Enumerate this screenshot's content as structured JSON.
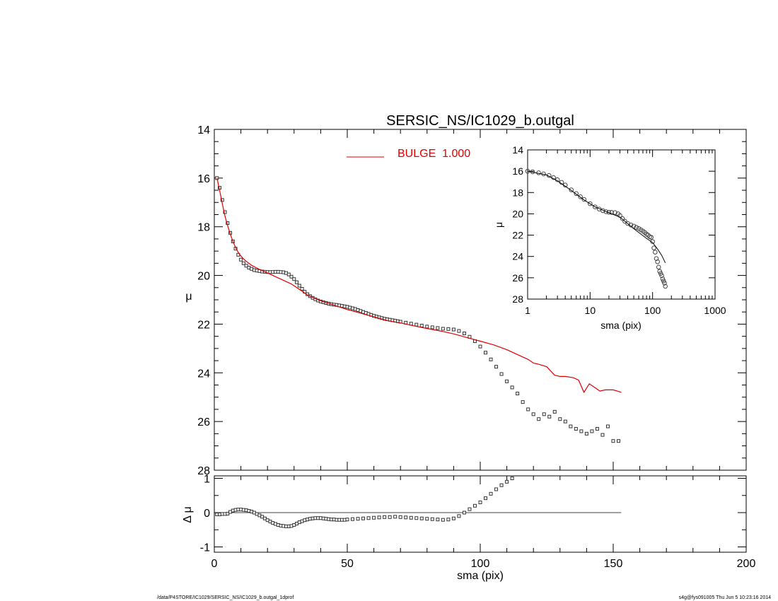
{
  "chart_data": [
    {
      "name": "main-profile",
      "type": "scatter",
      "title": "SERSIC_NS/IC1029_b.outgal",
      "xlabel": "",
      "ylabel": "μ",
      "xlim": [
        0,
        200
      ],
      "ylim": [
        28,
        14
      ],
      "y_inverted": true,
      "x_ticks": [],
      "y_ticks": [
        "14",
        "16",
        "18",
        "20",
        "22",
        "24",
        "26",
        "28"
      ],
      "grid": false,
      "legend": {
        "position": "top-center",
        "label": "BULGE  1.000",
        "color": "#e00000"
      },
      "observed_points": {
        "marker": "square",
        "x": [
          1,
          2,
          3,
          4,
          5,
          6,
          7,
          8,
          9,
          10,
          11,
          12,
          13,
          14,
          15,
          16,
          17,
          18,
          19,
          20,
          21,
          22,
          23,
          24,
          25,
          26,
          27,
          28,
          29,
          30,
          31,
          32,
          33,
          34,
          35,
          36,
          37,
          38,
          39,
          40,
          41,
          42,
          43,
          44,
          45,
          46,
          47,
          48,
          49,
          50,
          51,
          52,
          53,
          54,
          55,
          56,
          57,
          58,
          59,
          60,
          61,
          62,
          63,
          64,
          65,
          66,
          67,
          68,
          69,
          70,
          72,
          74,
          76,
          78,
          80,
          82,
          84,
          86,
          88,
          90,
          92,
          94,
          96,
          98,
          100,
          102,
          104,
          106,
          108,
          110,
          112,
          114,
          116,
          118,
          120,
          122,
          124,
          126,
          128,
          130,
          132,
          134,
          136,
          138,
          140,
          142,
          144,
          146,
          148,
          150,
          152
        ],
        "y": [
          16.0,
          16.4,
          16.9,
          17.4,
          17.85,
          18.25,
          18.6,
          18.9,
          19.15,
          19.35,
          19.5,
          19.6,
          19.68,
          19.73,
          19.78,
          19.8,
          19.82,
          19.84,
          19.85,
          19.86,
          19.86,
          19.86,
          19.85,
          19.85,
          19.86,
          19.87,
          19.9,
          19.96,
          20.05,
          20.15,
          20.28,
          20.42,
          20.55,
          20.67,
          20.77,
          20.85,
          20.92,
          20.98,
          21.03,
          21.07,
          21.1,
          21.13,
          21.16,
          21.18,
          21.2,
          21.21,
          21.23,
          21.25,
          21.27,
          21.29,
          21.32,
          21.35,
          21.38,
          21.42,
          21.46,
          21.5,
          21.54,
          21.58,
          21.62,
          21.66,
          21.69,
          21.72,
          21.75,
          21.78,
          21.8,
          21.82,
          21.84,
          21.86,
          21.88,
          21.9,
          21.94,
          21.98,
          22.02,
          22.06,
          22.1,
          22.13,
          22.16,
          22.19,
          22.2,
          22.22,
          22.28,
          22.38,
          22.52,
          22.7,
          22.92,
          23.17,
          23.45,
          23.75,
          24.05,
          24.35,
          24.6,
          24.85,
          25.2,
          25.5,
          25.7,
          25.9,
          25.7,
          25.8,
          25.6,
          25.9,
          26.0,
          26.2,
          26.3,
          26.4,
          26.5,
          26.4,
          26.3,
          26.55,
          26.2,
          26.8,
          26.8
        ]
      },
      "model_line": {
        "name": "BULGE  1.000",
        "color": "#e00000",
        "x": [
          1,
          2,
          3,
          4,
          5,
          6,
          7,
          8,
          9,
          10,
          11,
          12,
          13,
          14,
          15,
          17,
          19,
          21,
          23,
          25,
          27,
          29,
          31,
          33,
          35,
          37,
          39,
          41,
          43,
          45,
          50,
          55,
          60,
          65,
          70,
          75,
          80,
          85,
          90,
          95,
          100,
          105,
          110,
          115,
          118,
          120,
          122,
          125,
          128,
          130,
          132,
          135,
          137,
          139,
          141,
          143,
          145,
          147,
          150,
          153
        ],
        "y": [
          16.0,
          16.5,
          17.05,
          17.55,
          17.95,
          18.3,
          18.6,
          18.85,
          19.05,
          19.2,
          19.32,
          19.42,
          19.5,
          19.58,
          19.64,
          19.75,
          19.85,
          19.95,
          20.05,
          20.15,
          20.25,
          20.35,
          20.5,
          20.65,
          20.8,
          20.9,
          21.0,
          21.08,
          21.15,
          21.22,
          21.4,
          21.55,
          21.7,
          21.85,
          21.95,
          22.07,
          22.18,
          22.28,
          22.4,
          22.55,
          22.7,
          22.85,
          23.05,
          23.3,
          23.45,
          23.6,
          23.65,
          23.75,
          24.1,
          24.15,
          24.15,
          24.2,
          24.3,
          24.8,
          24.45,
          24.6,
          24.75,
          24.7,
          24.7,
          24.8
        ]
      }
    },
    {
      "name": "residual",
      "type": "scatter",
      "xlabel": "sma (pix)",
      "ylabel": "Δ μ",
      "xlim": [
        0,
        200
      ],
      "ylim": [
        -1.1,
        1.1
      ],
      "x_ticks": [
        "0",
        "50",
        "100",
        "150",
        "200"
      ],
      "y_ticks": [
        "1",
        "0",
        "-1"
      ],
      "zero_line": {
        "x_from": 0,
        "x_to": 153
      },
      "points": {
        "marker": "square",
        "x": [
          1,
          2,
          3,
          4,
          5,
          6,
          7,
          8,
          9,
          10,
          11,
          12,
          13,
          14,
          15,
          16,
          17,
          18,
          19,
          20,
          21,
          22,
          23,
          24,
          25,
          26,
          27,
          28,
          29,
          30,
          31,
          32,
          33,
          34,
          35,
          36,
          37,
          38,
          39,
          40,
          41,
          42,
          43,
          44,
          45,
          46,
          47,
          48,
          49,
          50,
          52,
          54,
          56,
          58,
          60,
          62,
          64,
          66,
          68,
          70,
          72,
          74,
          76,
          78,
          80,
          82,
          84,
          86,
          88,
          90,
          92,
          94,
          96,
          98,
          100,
          102,
          104,
          106,
          108,
          110,
          112,
          114,
          116
        ],
        "y": [
          -0.05,
          -0.05,
          -0.04,
          -0.04,
          -0.03,
          0.02,
          0.06,
          0.08,
          0.09,
          0.09,
          0.08,
          0.07,
          0.05,
          0.03,
          0.0,
          -0.04,
          -0.08,
          -0.12,
          -0.17,
          -0.22,
          -0.26,
          -0.3,
          -0.33,
          -0.36,
          -0.38,
          -0.39,
          -0.4,
          -0.4,
          -0.39,
          -0.36,
          -0.32,
          -0.28,
          -0.25,
          -0.22,
          -0.2,
          -0.18,
          -0.17,
          -0.16,
          -0.16,
          -0.16,
          -0.17,
          -0.18,
          -0.19,
          -0.2,
          -0.2,
          -0.21,
          -0.21,
          -0.21,
          -0.21,
          -0.2,
          -0.19,
          -0.18,
          -0.17,
          -0.16,
          -0.15,
          -0.14,
          -0.13,
          -0.13,
          -0.12,
          -0.13,
          -0.14,
          -0.15,
          -0.16,
          -0.17,
          -0.18,
          -0.19,
          -0.2,
          -0.21,
          -0.2,
          -0.17,
          -0.1,
          0.0,
          0.1,
          0.2,
          0.3,
          0.42,
          0.55,
          0.68,
          0.8,
          0.9,
          1.0,
          1.1,
          1.2
        ]
      }
    },
    {
      "name": "inset-log-profile",
      "type": "scatter",
      "xlabel": "sma (pix)",
      "ylabel": "μ",
      "x_scale": "log",
      "xlim": [
        1,
        1000
      ],
      "ylim": [
        28,
        14
      ],
      "y_inverted": true,
      "x_ticks": [
        "1",
        "10",
        "100",
        "1000"
      ],
      "y_ticks": [
        "14",
        "16",
        "18",
        "20",
        "22",
        "24",
        "26",
        "28"
      ],
      "observed_points": {
        "marker": "circle",
        "x": [
          1,
          1.2,
          1.5,
          1.8,
          2.2,
          2.6,
          3,
          3.5,
          4,
          5,
          6,
          7,
          8,
          10,
          12,
          14,
          16,
          18,
          20,
          22,
          25,
          28,
          30,
          33,
          36,
          40,
          45,
          50,
          55,
          60,
          65,
          70,
          75,
          80,
          85,
          90,
          95,
          100,
          105,
          110,
          115,
          120,
          125,
          130,
          135,
          140,
          145,
          150,
          155,
          160
        ],
        "y": [
          16.0,
          16.05,
          16.15,
          16.25,
          16.4,
          16.6,
          16.8,
          17.05,
          17.3,
          17.75,
          18.1,
          18.4,
          18.65,
          19.05,
          19.35,
          19.55,
          19.7,
          19.8,
          19.85,
          19.86,
          19.88,
          20.0,
          20.15,
          20.45,
          20.7,
          20.9,
          21.05,
          21.15,
          21.27,
          21.38,
          21.5,
          21.62,
          21.75,
          21.9,
          22.0,
          22.15,
          22.2,
          22.6,
          23.2,
          23.6,
          24.2,
          24.5,
          25.0,
          25.4,
          25.6,
          25.8,
          26.1,
          26.3,
          26.5,
          26.8
        ]
      },
      "model_line": {
        "x": [
          1,
          2,
          3,
          5,
          8,
          12,
          20,
          30,
          50,
          80,
          100,
          120,
          140,
          160
        ],
        "y": [
          16.0,
          16.35,
          16.9,
          17.8,
          18.7,
          19.35,
          19.9,
          20.3,
          21.4,
          22.3,
          22.7,
          23.3,
          23.9,
          24.6
        ]
      }
    }
  ],
  "footer": {
    "left": "/data/P4STORE/IC1029/SERSIC_NS/IC1029_b.outgal_1dprof",
    "right": "s4g@fys091005  Thu Jun  5 10:23:16 2014"
  }
}
